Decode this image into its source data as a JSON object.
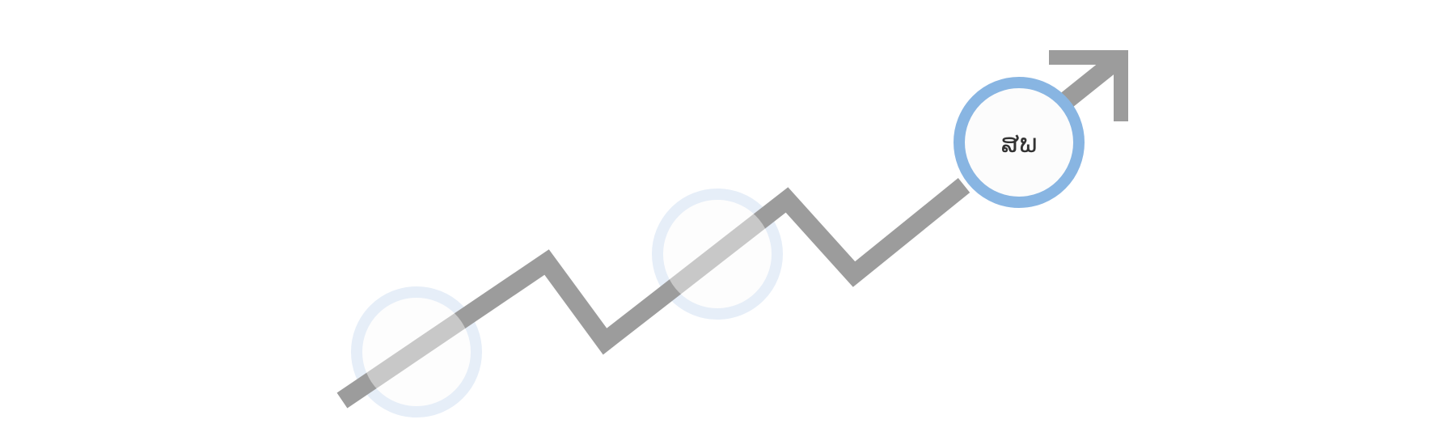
{
  "diagram": {
    "stages": [
      {
        "id": "stage-1",
        "label": "",
        "active": false
      },
      {
        "id": "stage-2",
        "label": "",
        "active": false
      },
      {
        "id": "stage-3",
        "label": "ສພ",
        "active": true
      }
    ],
    "colors": {
      "trend_line": "#9c9c9c",
      "active_ring": "#88b5e2",
      "inactive_ring": "#e6eef8",
      "circle_fill": "#fcfcfc",
      "label_text": "#333333"
    },
    "icons": {
      "arrow": "trend-up-arrow-icon"
    }
  }
}
